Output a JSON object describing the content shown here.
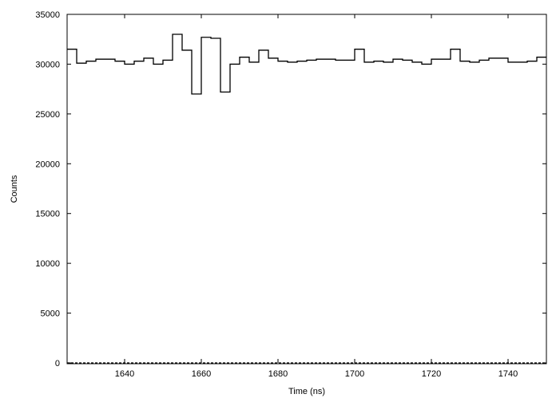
{
  "chart_data": {
    "type": "step",
    "title": "",
    "xlabel": "Time (ns)",
    "ylabel": "Counts",
    "xlim": [
      1625,
      1750
    ],
    "ylim": [
      0,
      35000
    ],
    "x_ticks": [
      1640,
      1660,
      1680,
      1700,
      1720,
      1740
    ],
    "y_ticks": [
      0,
      5000,
      10000,
      15000,
      20000,
      25000,
      30000,
      35000
    ],
    "grid": false,
    "legend": "none",
    "line_color": "#000000",
    "bin_edges": [
      1625,
      1627.5,
      1630,
      1632.5,
      1635,
      1637.5,
      1640,
      1642.5,
      1645,
      1647.5,
      1650,
      1652.5,
      1655,
      1657.5,
      1660,
      1662.5,
      1665,
      1667.5,
      1670,
      1672.5,
      1675,
      1677.5,
      1680,
      1682.5,
      1685,
      1687.5,
      1690,
      1692.5,
      1695,
      1697.5,
      1700,
      1702.5,
      1705,
      1707.5,
      1710,
      1712.5,
      1715,
      1717.5,
      1720,
      1722.5,
      1725,
      1727.5,
      1730,
      1732.5,
      1735,
      1737.5,
      1740,
      1742.5,
      1745,
      1747.5,
      1750
    ],
    "counts": [
      31500,
      30100,
      30300,
      30500,
      30500,
      30300,
      30000,
      30300,
      30600,
      30000,
      30400,
      33000,
      31400,
      27000,
      32700,
      32600,
      27200,
      30000,
      30700,
      30200,
      31400,
      30600,
      30300,
      30200,
      30300,
      30400,
      30500,
      30500,
      30400,
      30400,
      31500,
      30200,
      30300,
      30200,
      30500,
      30400,
      30200,
      30000,
      30500,
      30500,
      31500,
      30300,
      30200,
      30400,
      30600,
      30600,
      30200,
      30200,
      30300,
      30700
    ]
  }
}
